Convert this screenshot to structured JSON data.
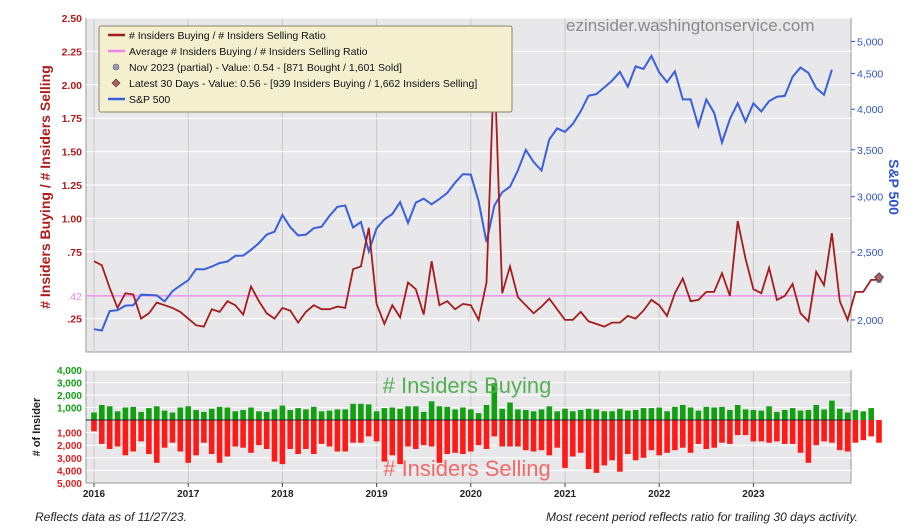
{
  "watermark": "ezinsider.washingtonservice.com",
  "footer": {
    "left": "Reflects data as of 11/27/23.",
    "right": "Most recent period reflects ratio for trailing 30 days activity."
  },
  "colors": {
    "ratio": "#a31d1d",
    "average": "#ee82ee",
    "sp500": "#3a5fd9",
    "buying": "#12a012",
    "selling": "#ff1a1a",
    "buying_label": "#55b055",
    "selling_label": "#f06a6a",
    "left_axis": "#b01c1c",
    "right_axis": "#2e55c8",
    "plot_bg": "#e8e8ea"
  },
  "chart_data": [
    {
      "type": "line",
      "ylabel": "# Insiders Buying / # Insiders Selling",
      "y2label": "S&P 500",
      "ylim": [
        0,
        2.5
      ],
      "yticks": [
        0.25,
        0.75,
        1.0,
        1.25,
        1.5,
        1.75,
        2.0,
        2.25,
        2.5
      ],
      "ytick_labels": [
        ".25",
        ".75",
        "1.00",
        "1.25",
        "1.50",
        "1.75",
        "2.00",
        "2.25",
        "2.50"
      ],
      "y2_scale": "log",
      "y2lim": [
        1800,
        5400
      ],
      "y2ticks": [
        2000,
        2500,
        3000,
        3500,
        4000,
        4500,
        5000
      ],
      "y2tick_labels": [
        "2,000",
        "2,500",
        "3,000",
        "3,500",
        "4,000",
        "4,500",
        "5,000"
      ],
      "average_value": 0.42,
      "average_label": ".42",
      "legend_position": "top-left",
      "legend": [
        {
          "label": "# Insiders Buying / # Insiders Selling Ratio",
          "symbol": "line",
          "color": "#a31d1d"
        },
        {
          "label": "Average # Insiders Buying / # Insiders Selling Ratio",
          "symbol": "line",
          "color": "#ee82ee"
        },
        {
          "label": "Nov 2023 (partial) - Value: 0.54 - [871 Bought / 1,601 Sold]",
          "symbol": "dot",
          "color": "#9a9ab8"
        },
        {
          "label": "Latest 30 Days - Value: 0.56 - [939 Insiders Buying / 1,662 Insiders Selling]",
          "symbol": "diamond",
          "color": "#b06060"
        },
        {
          "label": "S&P 500",
          "symbol": "line",
          "color": "#3a5fd9"
        }
      ],
      "x_start": "2016-01",
      "series": [
        {
          "name": "# Insiders Buying / # Insiders Selling Ratio",
          "axis": "left",
          "values": [
            0.68,
            0.65,
            0.48,
            0.33,
            0.44,
            0.43,
            0.25,
            0.29,
            0.37,
            0.35,
            0.33,
            0.3,
            0.25,
            0.2,
            0.19,
            0.32,
            0.3,
            0.38,
            0.35,
            0.28,
            0.49,
            0.38,
            0.29,
            0.25,
            0.33,
            0.31,
            0.22,
            0.3,
            0.35,
            0.32,
            0.32,
            0.34,
            0.33,
            0.62,
            0.64,
            0.93,
            0.36,
            0.21,
            0.35,
            0.26,
            0.52,
            0.47,
            0.28,
            0.68,
            0.35,
            0.38,
            0.32,
            0.36,
            0.35,
            0.24,
            0.52,
            2.19,
            0.44,
            0.64,
            0.41,
            0.35,
            0.29,
            0.34,
            0.4,
            0.32,
            0.24,
            0.24,
            0.3,
            0.23,
            0.21,
            0.19,
            0.22,
            0.22,
            0.27,
            0.25,
            0.31,
            0.39,
            0.35,
            0.27,
            0.44,
            0.55,
            0.38,
            0.39,
            0.45,
            0.45,
            0.59,
            0.42,
            0.98,
            0.7,
            0.47,
            0.44,
            0.63,
            0.39,
            0.42,
            0.51,
            0.29,
            0.23,
            0.6,
            0.5,
            0.89,
            0.38,
            0.24,
            0.45,
            0.45,
            0.54,
            0.54
          ]
        },
        {
          "name": "S&P 500",
          "axis": "right",
          "values": [
            1940,
            1932,
            2059,
            2065,
            2097,
            2099,
            2173,
            2171,
            2168,
            2126,
            2199,
            2239,
            2279,
            2364,
            2362,
            2384,
            2412,
            2423,
            2470,
            2472,
            2519,
            2575,
            2648,
            2674,
            2824,
            2714,
            2641,
            2648,
            2705,
            2718,
            2816,
            2902,
            2914,
            2711,
            2760,
            2507,
            2704,
            2784,
            2834,
            2946,
            2752,
            2942,
            2980,
            2926,
            2977,
            3038,
            3141,
            3231,
            3226,
            2954,
            2585,
            2912,
            3044,
            3100,
            3271,
            3500,
            3363,
            3270,
            3622,
            3756,
            3714,
            3811,
            3973,
            4181,
            4204,
            4298,
            4395,
            4523,
            4308,
            4605,
            4567,
            4766,
            4516,
            4374,
            4530,
            4132,
            4132,
            3785,
            4130,
            3955,
            3586,
            3872,
            4080,
            3840,
            4077,
            3970,
            4109,
            4169,
            4180,
            4450,
            4589,
            4508,
            4288,
            4194,
            4555
          ]
        }
      ]
    },
    {
      "type": "bar",
      "ylabel": "# of Insider",
      "x_start": "2016-01",
      "x_tick_labels": [
        "2016",
        "2017",
        "2018",
        "2019",
        "2020",
        "2021",
        "2022",
        "2023"
      ],
      "yticks_up": [
        1000,
        2000,
        3000,
        4000
      ],
      "ytick_labels_up": [
        "1,000",
        "2,000",
        "3,000",
        "4,000"
      ],
      "yticks_down": [
        1000,
        2000,
        3000,
        4000,
        5000
      ],
      "ytick_labels_down": [
        "1,000",
        "2,000",
        "3,000",
        "4,000",
        "5,000"
      ],
      "ylim_up": [
        0,
        4000
      ],
      "ylim_down": [
        0,
        5000
      ],
      "annotations": [
        "# Insiders Buying",
        "# Insiders Selling"
      ],
      "series": [
        {
          "name": "# Insiders Buying",
          "direction": "up",
          "values": [
            600,
            1200,
            1100,
            700,
            1000,
            1050,
            650,
            950,
            1100,
            750,
            600,
            1000,
            1100,
            800,
            650,
            900,
            1050,
            1000,
            700,
            800,
            1000,
            700,
            650,
            850,
            1150,
            800,
            950,
            850,
            1050,
            700,
            750,
            850,
            850,
            1300,
            1300,
            1250,
            700,
            950,
            1000,
            900,
            1100,
            1100,
            650,
            1500,
            1100,
            1050,
            850,
            1000,
            850,
            550,
            1200,
            2950,
            900,
            1400,
            850,
            800,
            700,
            850,
            1100,
            700,
            900,
            700,
            800,
            900,
            850,
            700,
            700,
            900,
            750,
            800,
            950,
            950,
            1000,
            700,
            1050,
            1200,
            1000,
            750,
            1050,
            1000,
            1050,
            800,
            1200,
            850,
            800,
            750,
            1100,
            650,
            800,
            950,
            750,
            800,
            1200,
            850,
            1550,
            900,
            600,
            800,
            700,
            950
          ]
        },
        {
          "name": "# Insiders Selling",
          "direction": "down",
          "values": [
            900,
            1900,
            2300,
            2100,
            2800,
            2500,
            1700,
            2700,
            3400,
            2200,
            1800,
            2500,
            3400,
            2800,
            1800,
            2700,
            3400,
            2900,
            2100,
            2200,
            2600,
            2000,
            2300,
            3300,
            3500,
            2300,
            2700,
            2300,
            2700,
            1900,
            2100,
            2500,
            2500,
            1800,
            1800,
            1300,
            1700,
            3300,
            2800,
            3500,
            2100,
            2300,
            2000,
            2100,
            3400,
            2700,
            2600,
            2700,
            2500,
            2000,
            2300,
            1300,
            2100,
            2100,
            2100,
            2400,
            2500,
            2400,
            2800,
            2200,
            3800,
            2900,
            2600,
            3900,
            4200,
            3600,
            3200,
            4100,
            2700,
            3200,
            3000,
            2400,
            2800,
            2600,
            2400,
            2200,
            2600,
            1900,
            2300,
            2200,
            1800,
            1900,
            1200,
            1200,
            1700,
            1700,
            1800,
            1700,
            1900,
            1900,
            2600,
            3400,
            2000,
            1700,
            1800,
            2400,
            2500,
            1800,
            1600,
            1300,
            1800
          ]
        }
      ]
    }
  ]
}
